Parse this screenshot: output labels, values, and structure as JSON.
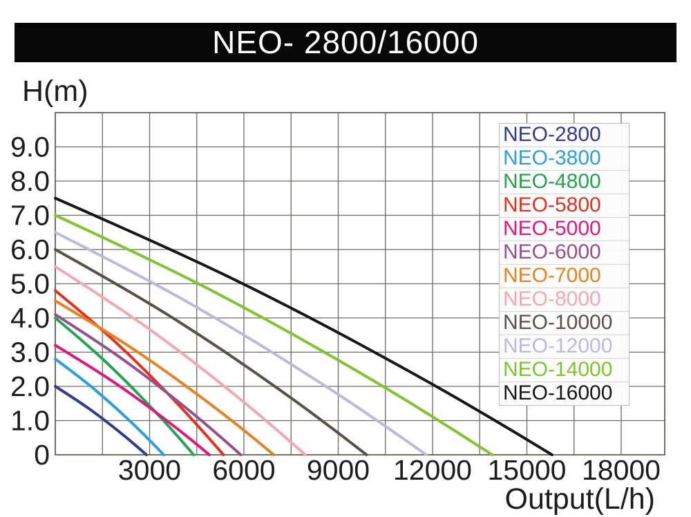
{
  "banner": {
    "title": "NEO- 2800/16000"
  },
  "axes": {
    "y_label": "H(m)",
    "x_label": "Output(L/h)"
  },
  "colors": {
    "banner_bg": "#080808",
    "banner_text": "#ffffff",
    "grid": "#686d5e",
    "border": "#5e6352",
    "tick_text": "#1c1c1c",
    "legend_bg": "#fcfcfc",
    "legend_border": "#bdbdbd"
  },
  "chart_data": {
    "type": "line",
    "title": "NEO- 2800/16000",
    "xlabel": "Output(L/h)",
    "ylabel": "H(m)",
    "xlim": [
      0,
      19385
    ],
    "ylim": [
      0,
      10
    ],
    "grid": true,
    "x_grid_step": 1500,
    "y_grid_step": 1,
    "x_tick_labels": [
      3000,
      6000,
      9000,
      12000,
      15000,
      18000
    ],
    "y_tick_labels": [
      {
        "value": 9,
        "label": "9.0"
      },
      {
        "value": 8,
        "label": "8.0"
      },
      {
        "value": 7,
        "label": "7.0"
      },
      {
        "value": 6,
        "label": "6.0"
      },
      {
        "value": 5,
        "label": "5.0"
      },
      {
        "value": 4,
        "label": "4.0"
      },
      {
        "value": 3,
        "label": "3.0"
      },
      {
        "value": 2,
        "label": "2.0"
      },
      {
        "value": 1,
        "label": "1.0"
      },
      {
        "value": 0,
        "label": "0"
      }
    ],
    "legend_position": "upper-right",
    "series": [
      {
        "name": "NEO-2800",
        "color": "#323b8e",
        "max_head_m": 2.0,
        "max_flow_lph": 2900,
        "points": [
          [
            0,
            2.0
          ],
          [
            703,
            1.59
          ],
          [
            1421,
            1.12
          ],
          [
            2153,
            0.59
          ],
          [
            2600,
            0.24
          ],
          [
            2900,
            0
          ]
        ]
      },
      {
        "name": "NEO-3800",
        "color": "#2ba0dc",
        "max_head_m": 2.8,
        "max_flow_lph": 3450,
        "points": [
          [
            0,
            2.8
          ],
          [
            836,
            2.23
          ],
          [
            1690,
            1.57
          ],
          [
            2562,
            0.83
          ],
          [
            3093,
            0.34
          ],
          [
            3450,
            0
          ]
        ]
      },
      {
        "name": "NEO-4800",
        "color": "#22a54e",
        "max_head_m": 4.0,
        "max_flow_lph": 4400,
        "points": [
          [
            0,
            4.0
          ],
          [
            1067,
            3.18
          ],
          [
            2156,
            2.24
          ],
          [
            3267,
            1.18
          ],
          [
            3944,
            0.49
          ],
          [
            4400,
            0
          ]
        ]
      },
      {
        "name": "NEO-5800",
        "color": "#e3311e",
        "max_head_m": 4.8,
        "max_flow_lph": 5350,
        "points": [
          [
            0,
            4.8
          ],
          [
            1297,
            3.82
          ],
          [
            2622,
            2.69
          ],
          [
            3972,
            1.42
          ],
          [
            4796,
            0.58
          ],
          [
            5350,
            0
          ]
        ]
      },
      {
        "name": "NEO-5000",
        "color": "#e0187e",
        "max_head_m": 3.2,
        "max_flow_lph": 4900,
        "points": [
          [
            0,
            3.2
          ],
          [
            1188,
            2.54
          ],
          [
            2401,
            1.79
          ],
          [
            3638,
            0.94
          ],
          [
            4392,
            0.39
          ],
          [
            4900,
            0
          ]
        ]
      },
      {
        "name": "NEO-6000",
        "color": "#964f8e",
        "max_head_m": 4.1,
        "max_flow_lph": 5900,
        "points": [
          [
            0,
            4.1
          ],
          [
            1431,
            3.26
          ],
          [
            2891,
            2.3
          ],
          [
            4381,
            1.21
          ],
          [
            5289,
            0.5
          ],
          [
            5900,
            0
          ]
        ]
      },
      {
        "name": "NEO-7000",
        "color": "#e8821e",
        "max_head_m": 4.5,
        "max_flow_lph": 6950,
        "points": [
          [
            0,
            4.5
          ],
          [
            1685,
            3.58
          ],
          [
            3406,
            2.52
          ],
          [
            5160,
            1.33
          ],
          [
            6230,
            0.55
          ],
          [
            6950,
            0
          ]
        ]
      },
      {
        "name": "NEO-8000",
        "color": "#f3a7b1",
        "max_head_m": 5.5,
        "max_flow_lph": 7950,
        "points": [
          [
            0,
            5.5
          ],
          [
            1928,
            4.37
          ],
          [
            3896,
            3.08
          ],
          [
            5903,
            1.62
          ],
          [
            7126,
            0.67
          ],
          [
            7950,
            0
          ]
        ]
      },
      {
        "name": "NEO-10000",
        "color": "#595046",
        "max_head_m": 6.0,
        "max_flow_lph": 9900,
        "points": [
          [
            0,
            6.0
          ],
          [
            2401,
            4.77
          ],
          [
            4851,
            3.36
          ],
          [
            7351,
            1.77
          ],
          [
            8874,
            0.73
          ],
          [
            9900,
            0
          ]
        ]
      },
      {
        "name": "NEO-12000",
        "color": "#b9badd",
        "max_head_m": 6.5,
        "max_flow_lph": 11800,
        "points": [
          [
            0,
            6.5
          ],
          [
            2862,
            5.17
          ],
          [
            5782,
            3.64
          ],
          [
            8762,
            1.92
          ],
          [
            10578,
            0.79
          ],
          [
            11800,
            0
          ]
        ]
      },
      {
        "name": "NEO-14000",
        "color": "#7fc52d",
        "max_head_m": 7.0,
        "max_flow_lph": 13900,
        "points": [
          [
            0,
            7.0
          ],
          [
            3371,
            5.57
          ],
          [
            6811,
            3.92
          ],
          [
            10321,
            2.07
          ],
          [
            12460,
            0.85
          ],
          [
            13900,
            0
          ]
        ]
      },
      {
        "name": "NEO-16000",
        "color": "#161616",
        "max_head_m": 7.5,
        "max_flow_lph": 15800,
        "points": [
          [
            0,
            7.5
          ],
          [
            3832,
            5.96
          ],
          [
            7742,
            4.2
          ],
          [
            11732,
            2.21
          ],
          [
            14163,
            0.91
          ],
          [
            15800,
            0
          ]
        ]
      }
    ]
  }
}
